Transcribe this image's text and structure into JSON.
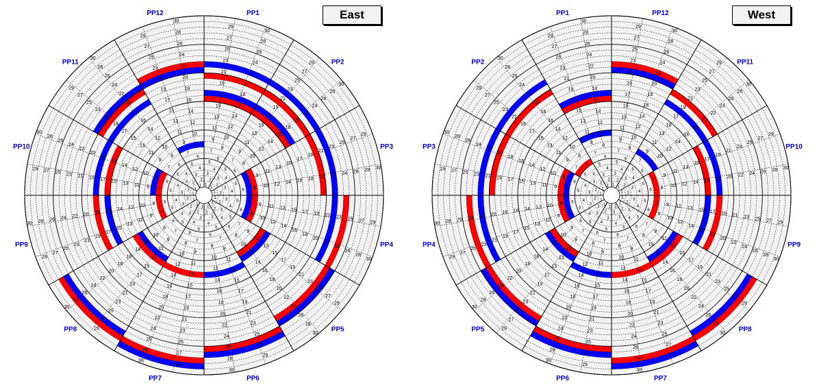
{
  "panels": [
    {
      "title": "East",
      "pp_labels": [
        "PP1",
        "PP2",
        "PP3",
        "PP4",
        "PP5",
        "PP6",
        "PP7",
        "PP8",
        "PP9",
        "PP10",
        "PP11",
        "PP12"
      ],
      "highlights": [
        {
          "sector": 1,
          "ring": 16,
          "color": "red"
        },
        {
          "sector": 1,
          "ring": 17,
          "color": "blue"
        },
        {
          "sector": 1,
          "ring": 20,
          "color": "red"
        },
        {
          "sector": 1,
          "ring": 22,
          "color": "blue"
        },
        {
          "sector": 2,
          "ring": 16,
          "color": "red"
        },
        {
          "sector": 2,
          "ring": 17,
          "color": "blue"
        },
        {
          "sector": 2,
          "ring": 20,
          "color": "red"
        },
        {
          "sector": 2,
          "ring": 22,
          "color": "blue"
        },
        {
          "sector": 3,
          "ring": 7,
          "color": "blue"
        },
        {
          "sector": 3,
          "ring": 8,
          "color": "red"
        },
        {
          "sector": 3,
          "ring": 20,
          "color": "red"
        },
        {
          "sector": 3,
          "ring": 22,
          "color": "blue"
        },
        {
          "sector": 4,
          "ring": 7,
          "color": "blue"
        },
        {
          "sector": 4,
          "ring": 8,
          "color": "red"
        },
        {
          "sector": 4,
          "ring": 22,
          "color": "blue"
        },
        {
          "sector": 4,
          "ring": 24,
          "color": "red"
        },
        {
          "sector": 5,
          "ring": 12,
          "color": "blue"
        },
        {
          "sector": 5,
          "ring": 11,
          "color": "red"
        },
        {
          "sector": 5,
          "ring": 24,
          "color": "red"
        },
        {
          "sector": 5,
          "ring": 25,
          "color": "blue"
        },
        {
          "sector": 6,
          "ring": 13,
          "color": "blue"
        },
        {
          "sector": 6,
          "ring": 26,
          "color": "red"
        },
        {
          "sector": 6,
          "ring": 27,
          "color": "blue"
        },
        {
          "sector": 7,
          "ring": 13,
          "color": "red"
        },
        {
          "sector": 7,
          "ring": 28,
          "color": "red"
        },
        {
          "sector": 7,
          "ring": 29,
          "color": "blue"
        },
        {
          "sector": 8,
          "ring": 12,
          "color": "blue"
        },
        {
          "sector": 8,
          "ring": 13,
          "color": "red"
        },
        {
          "sector": 8,
          "ring": 28,
          "color": "red"
        },
        {
          "sector": 8,
          "ring": 27,
          "color": "blue"
        },
        {
          "sector": 9,
          "ring": 7,
          "color": "red"
        },
        {
          "sector": 9,
          "ring": 16,
          "color": "blue"
        },
        {
          "sector": 9,
          "ring": 18,
          "color": "red"
        },
        {
          "sector": 10,
          "ring": 7,
          "color": "red"
        },
        {
          "sector": 10,
          "ring": 8,
          "color": "blue"
        },
        {
          "sector": 10,
          "ring": 16,
          "color": "red"
        },
        {
          "sector": 10,
          "ring": 18,
          "color": "blue"
        },
        {
          "sector": 11,
          "ring": 18,
          "color": "blue"
        },
        {
          "sector": 11,
          "ring": 20,
          "color": "red"
        },
        {
          "sector": 11,
          "ring": 21,
          "color": "blue"
        },
        {
          "sector": 12,
          "ring": 8,
          "color": "blue"
        },
        {
          "sector": 12,
          "ring": 22,
          "color": "red"
        },
        {
          "sector": 12,
          "ring": 21,
          "color": "blue"
        }
      ]
    },
    {
      "title": "West",
      "pp_labels": [
        "PP12",
        "PP11",
        "PP10",
        "PP9",
        "PP8",
        "PP7",
        "PP6",
        "PP5",
        "PP4",
        "PP3",
        "PP2",
        "PP1"
      ],
      "highlights": [
        {
          "sector": 1,
          "ring": 22,
          "color": "red"
        },
        {
          "sector": 1,
          "ring": 21,
          "color": "blue"
        },
        {
          "sector": 2,
          "ring": 20,
          "color": "red"
        },
        {
          "sector": 2,
          "ring": 18,
          "color": "blue"
        },
        {
          "sector": 2,
          "ring": 8,
          "color": "blue"
        },
        {
          "sector": 3,
          "ring": 16,
          "color": "red"
        },
        {
          "sector": 3,
          "ring": 18,
          "color": "blue"
        },
        {
          "sector": 3,
          "ring": 7,
          "color": "red"
        },
        {
          "sector": 4,
          "ring": 16,
          "color": "blue"
        },
        {
          "sector": 4,
          "ring": 18,
          "color": "red"
        },
        {
          "sector": 4,
          "ring": 7,
          "color": "red"
        },
        {
          "sector": 5,
          "ring": 28,
          "color": "red"
        },
        {
          "sector": 5,
          "ring": 27,
          "color": "blue"
        },
        {
          "sector": 5,
          "ring": 12,
          "color": "blue"
        },
        {
          "sector": 5,
          "ring": 13,
          "color": "red"
        },
        {
          "sector": 6,
          "ring": 28,
          "color": "red"
        },
        {
          "sector": 6,
          "ring": 29,
          "color": "blue"
        },
        {
          "sector": 6,
          "ring": 13,
          "color": "red"
        },
        {
          "sector": 7,
          "ring": 26,
          "color": "red"
        },
        {
          "sector": 7,
          "ring": 27,
          "color": "blue"
        },
        {
          "sector": 7,
          "ring": 13,
          "color": "blue"
        },
        {
          "sector": 8,
          "ring": 24,
          "color": "red"
        },
        {
          "sector": 8,
          "ring": 25,
          "color": "blue"
        },
        {
          "sector": 8,
          "ring": 11,
          "color": "red"
        },
        {
          "sector": 8,
          "ring": 12,
          "color": "blue"
        },
        {
          "sector": 9,
          "ring": 22,
          "color": "blue"
        },
        {
          "sector": 9,
          "ring": 24,
          "color": "red"
        },
        {
          "sector": 9,
          "ring": 7,
          "color": "blue"
        },
        {
          "sector": 9,
          "ring": 8,
          "color": "red"
        },
        {
          "sector": 10,
          "ring": 20,
          "color": "red"
        },
        {
          "sector": 10,
          "ring": 22,
          "color": "blue"
        },
        {
          "sector": 10,
          "ring": 7,
          "color": "blue"
        },
        {
          "sector": 10,
          "ring": 8,
          "color": "red"
        },
        {
          "sector": 11,
          "ring": 20,
          "color": "red"
        },
        {
          "sector": 11,
          "ring": 22,
          "color": "blue"
        },
        {
          "sector": 11,
          "ring": 6,
          "color": "red"
        },
        {
          "sector": 12,
          "ring": 16,
          "color": "red"
        },
        {
          "sector": 12,
          "ring": 17,
          "color": "blue"
        },
        {
          "sector": 12,
          "ring": 10,
          "color": "blue"
        }
      ]
    }
  ],
  "colors": {
    "red": "#ff0000",
    "blue": "#0000ff",
    "cell": "#f2f2f2",
    "line": "#000000",
    "label": "#0000cc"
  }
}
